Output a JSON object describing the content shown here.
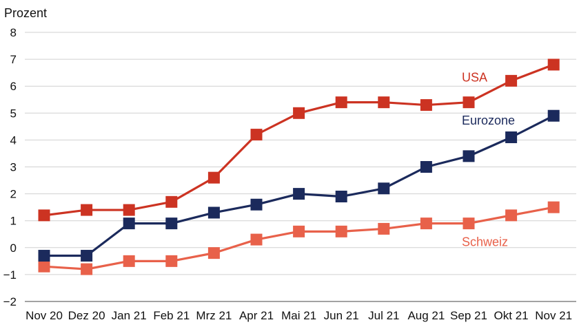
{
  "chart_data": {
    "type": "line",
    "title": "",
    "xlabel": "",
    "ylabel": "Prozent",
    "ylim": [
      -2,
      8
    ],
    "yticks": [
      -2,
      -1,
      0,
      1,
      2,
      3,
      4,
      5,
      6,
      7,
      8
    ],
    "ytick_labels": [
      "−2",
      "−1",
      "0",
      "1",
      "2",
      "3",
      "4",
      "5",
      "6",
      "7",
      "8"
    ],
    "grid": true,
    "legend": "inline labels next to lines",
    "categories": [
      "Nov 20",
      "Dez 20",
      "Jan 21",
      "Feb 21",
      "Mrz 21",
      "Apr 21",
      "Mai 21",
      "Jun 21",
      "Jul 21",
      "Aug 21",
      "Sep 21",
      "Okt 21",
      "Nov 21"
    ],
    "series": [
      {
        "name": "USA",
        "color": "#cc3322",
        "marker": "square",
        "values": [
          1.2,
          1.4,
          1.4,
          1.7,
          2.6,
          4.2,
          5.0,
          5.4,
          5.4,
          5.3,
          5.4,
          6.2,
          6.8
        ]
      },
      {
        "name": "Eurozone",
        "color": "#1b2a5c",
        "marker": "square",
        "values": [
          -0.3,
          -0.3,
          0.9,
          0.9,
          1.3,
          1.6,
          2.0,
          1.9,
          2.2,
          3.0,
          3.4,
          4.1,
          4.9
        ]
      },
      {
        "name": "Schweiz",
        "color": "#e8614a",
        "marker": "square",
        "values": [
          -0.7,
          -0.8,
          -0.5,
          -0.5,
          -0.2,
          0.3,
          0.6,
          0.6,
          0.7,
          0.9,
          0.9,
          1.2,
          1.5
        ]
      }
    ]
  }
}
